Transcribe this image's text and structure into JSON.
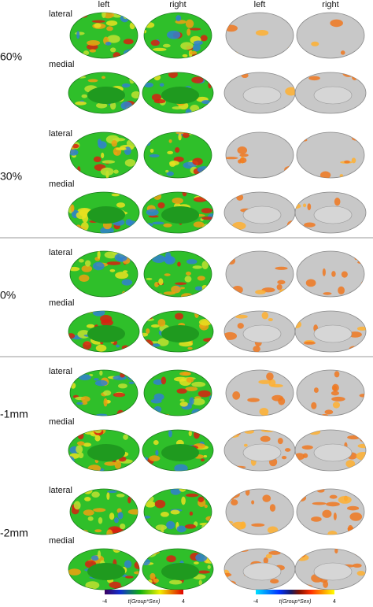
{
  "column_headers": [
    "left",
    "right",
    "left",
    "right"
  ],
  "rows": [
    {
      "label": "60%",
      "views": [
        "lateral",
        "medial"
      ]
    },
    {
      "label": "30%",
      "views": [
        "lateral",
        "medial"
      ]
    },
    {
      "label": "0%",
      "views": [
        "lateral",
        "medial"
      ]
    },
    {
      "label": "-1mm",
      "views": [
        "lateral",
        "medial"
      ]
    },
    {
      "label": "-2mm",
      "views": [
        "lateral",
        "medial"
      ]
    }
  ],
  "colorbars": [
    {
      "min": -4,
      "max": 4,
      "label": "t(Group*Sex)"
    },
    {
      "min": -4,
      "max": 4,
      "label": "t(Group*Sex)"
    }
  ]
}
